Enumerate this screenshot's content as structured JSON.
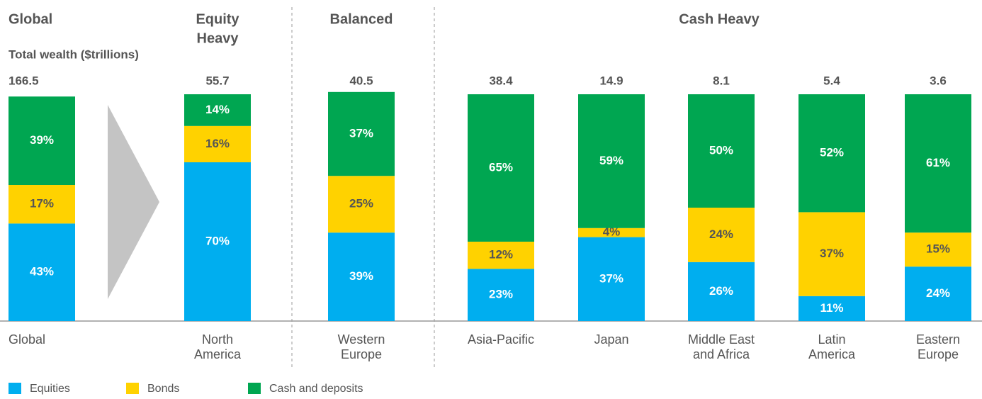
{
  "chart_data": {
    "type": "stacked_bar_100",
    "subtitle": "Total wealth ($trillions)",
    "groups": [
      [
        "Global"
      ],
      [
        "Equity",
        "Heavy"
      ],
      [
        "Balanced"
      ],
      [
        "Cash Heavy"
      ]
    ],
    "categories": [
      [
        "Global"
      ],
      [
        "North",
        "America"
      ],
      [
        "Western",
        "Europe"
      ],
      [
        "Asia-Pacific"
      ],
      [
        "Japan"
      ],
      [
        "Middle East",
        "and Africa"
      ],
      [
        "Latin",
        "America"
      ],
      [
        "Eastern",
        "Europe"
      ]
    ],
    "totals": [
      "166.5",
      "55.7",
      "40.5",
      "38.4",
      "14.9",
      "8.1",
      "5.4",
      "3.6"
    ],
    "ylim": [
      0,
      100
    ],
    "series": [
      {
        "name": "Equities",
        "color": "#00aeef",
        "values": [
          43,
          70,
          39,
          23,
          37,
          26,
          11,
          24
        ],
        "value_labels": [
          "43%",
          "70%",
          "39%",
          "23%",
          "37%",
          "26%",
          "11%",
          "24%"
        ]
      },
      {
        "name": "Bonds",
        "color": "#ffd200",
        "values": [
          17,
          16,
          25,
          12,
          4,
          24,
          37,
          15
        ],
        "value_labels": [
          "17%",
          "16%",
          "25%",
          "12%",
          "4%",
          "24%",
          "37%",
          "15%"
        ]
      },
      {
        "name": "Cash and deposits",
        "color": "#00a651",
        "values": [
          39,
          14,
          37,
          65,
          59,
          50,
          52,
          61
        ],
        "value_labels": [
          "39%",
          "14%",
          "37%",
          "65%",
          "59%",
          "50%",
          "52%",
          "61%"
        ]
      }
    ]
  }
}
